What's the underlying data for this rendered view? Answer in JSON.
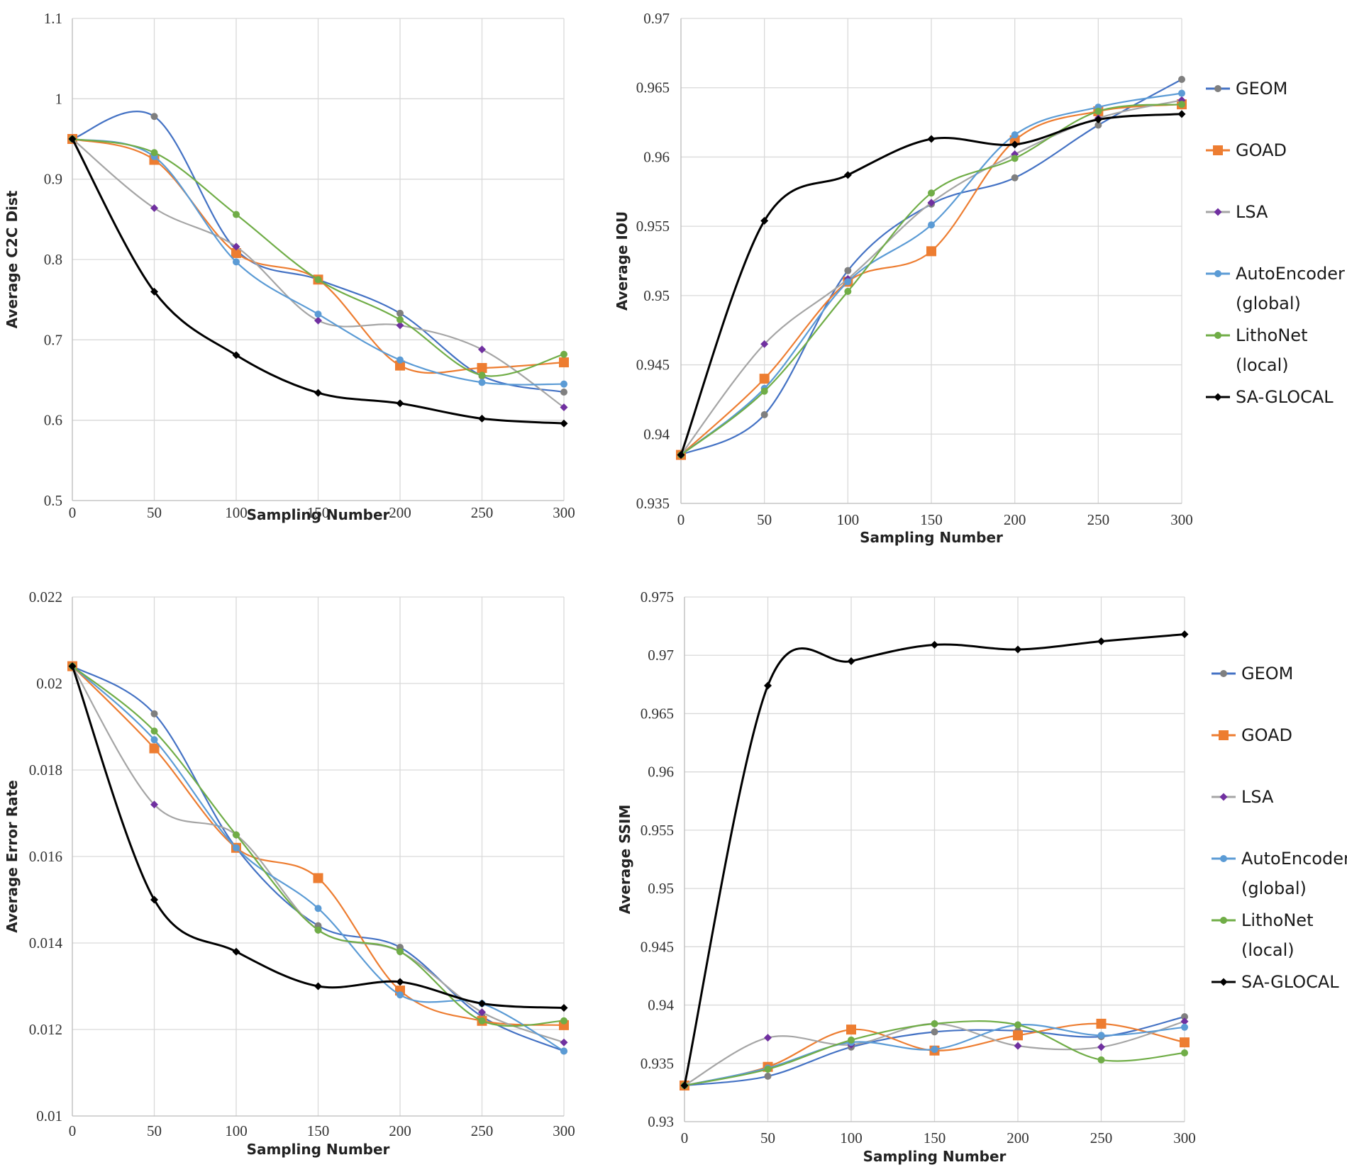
{
  "styles": {
    "GEOM": {
      "color": "#4472C4",
      "marker": "circle",
      "markerColor": "#7F7F7F"
    },
    "GOAD": {
      "color": "#ED7D31",
      "marker": "square",
      "markerColor": "#ED7D31"
    },
    "LSA": {
      "color": "#A5A5A5",
      "marker": "diamond",
      "markerColor": "#7030A0"
    },
    "AutoEncoder": {
      "color": "#5B9BD5",
      "marker": "circle",
      "markerColor": "#5B9BD5"
    },
    "LithoNet": {
      "color": "#70AD47",
      "marker": "circle",
      "markerColor": "#70AD47"
    },
    "SA-GLOCAL": {
      "color": "#000000",
      "marker": "diamond",
      "markerColor": "#000000"
    }
  },
  "chart_data": [
    {
      "type": "line",
      "xlabel": "Sampling Number",
      "ylabel": "Average C2C Dist",
      "x": [
        0,
        50,
        100,
        150,
        200,
        250,
        300
      ],
      "ylim": [
        0.5,
        1.1
      ],
      "yticks": [
        "0.5",
        "0.6",
        "0.7",
        "0.8",
        "0.9",
        "1",
        "1.1"
      ],
      "xticks": [
        "0",
        "50",
        "100",
        "150",
        "200",
        "250",
        "300"
      ],
      "grid": true,
      "legend": null,
      "series": [
        {
          "key": "GEOM",
          "values": [
            0.95,
            0.978,
            0.812,
            0.775,
            0.733,
            0.655,
            0.635
          ]
        },
        {
          "key": "GOAD",
          "values": [
            0.95,
            0.924,
            0.808,
            0.775,
            0.668,
            0.665,
            0.672
          ]
        },
        {
          "key": "LSA",
          "values": [
            0.95,
            0.864,
            0.816,
            0.724,
            0.718,
            0.688,
            0.616
          ]
        },
        {
          "key": "AutoEncoder",
          "values": [
            0.95,
            0.928,
            0.797,
            0.732,
            0.675,
            0.647,
            0.645
          ]
        },
        {
          "key": "LithoNet",
          "values": [
            0.95,
            0.933,
            0.856,
            0.775,
            0.725,
            0.656,
            0.682
          ]
        },
        {
          "key": "SA-GLOCAL",
          "values": [
            0.95,
            0.76,
            0.681,
            0.634,
            0.621,
            0.602,
            0.596
          ]
        }
      ]
    },
    {
      "type": "line",
      "xlabel": "Sampling Number",
      "ylabel": "Average IOU",
      "x": [
        0,
        50,
        100,
        150,
        200,
        250,
        300
      ],
      "ylim": [
        0.935,
        0.97
      ],
      "yticks": [
        "0.935",
        "0.94",
        "0.945",
        "0.95",
        "0.955",
        "0.96",
        "0.965",
        "0.97"
      ],
      "xticks": [
        "0",
        "50",
        "100",
        "150",
        "200",
        "250",
        "300"
      ],
      "grid": true,
      "legend": "right",
      "series": [
        {
          "key": "GEOM",
          "values": [
            0.9385,
            0.9414,
            0.9518,
            0.9566,
            0.9585,
            0.9623,
            0.9656
          ]
        },
        {
          "key": "GOAD",
          "values": [
            0.9385,
            0.944,
            0.951,
            0.9532,
            0.9612,
            0.9633,
            0.9638
          ]
        },
        {
          "key": "LSA",
          "values": [
            0.9385,
            0.9465,
            0.9512,
            0.9567,
            0.9602,
            0.9628,
            0.9641
          ]
        },
        {
          "key": "AutoEncoder",
          "values": [
            0.9385,
            0.9433,
            0.951,
            0.9551,
            0.9616,
            0.9636,
            0.9646
          ]
        },
        {
          "key": "LithoNet",
          "values": [
            0.9385,
            0.9431,
            0.9503,
            0.9574,
            0.9599,
            0.9633,
            0.9638
          ]
        },
        {
          "key": "SA-GLOCAL",
          "values": [
            0.9385,
            0.9554,
            0.9587,
            0.9613,
            0.9609,
            0.9627,
            0.9631
          ]
        }
      ],
      "legend_items": [
        "GEOM",
        "GOAD",
        "LSA",
        "AutoEncoder (global)",
        "LithoNet (local)",
        "SA-GLOCAL"
      ]
    },
    {
      "type": "line",
      "xlabel": "Sampling Number",
      "ylabel": "Average Error Rate",
      "x": [
        0,
        50,
        100,
        150,
        200,
        250,
        300
      ],
      "ylim": [
        0.01,
        0.022
      ],
      "yticks": [
        "0.01",
        "0.012",
        "0.014",
        "0.016",
        "0.018",
        "0.02",
        "0.022"
      ],
      "xticks": [
        "0",
        "50",
        "100",
        "150",
        "200",
        "250",
        "300"
      ],
      "grid": true,
      "legend": null,
      "series": [
        {
          "key": "GEOM",
          "values": [
            0.0204,
            0.0193,
            0.0162,
            0.0144,
            0.0139,
            0.0123,
            0.0115
          ]
        },
        {
          "key": "GOAD",
          "values": [
            0.0204,
            0.0185,
            0.0162,
            0.0155,
            0.0129,
            0.0122,
            0.0121
          ]
        },
        {
          "key": "LSA",
          "values": [
            0.0204,
            0.0172,
            0.0165,
            0.0143,
            0.0138,
            0.0124,
            0.0117
          ]
        },
        {
          "key": "AutoEncoder",
          "values": [
            0.0204,
            0.0187,
            0.0162,
            0.0148,
            0.0128,
            0.0126,
            0.0115
          ]
        },
        {
          "key": "LithoNet",
          "values": [
            0.0204,
            0.0189,
            0.0165,
            0.0143,
            0.0138,
            0.0122,
            0.0122
          ]
        },
        {
          "key": "SA-GLOCAL",
          "values": [
            0.0204,
            0.015,
            0.0138,
            0.013,
            0.0131,
            0.0126,
            0.0125
          ]
        }
      ]
    },
    {
      "type": "line",
      "xlabel": "Sampling Number",
      "ylabel": "Average SSIM",
      "x": [
        0,
        50,
        100,
        150,
        200,
        250,
        300
      ],
      "ylim": [
        0.93,
        0.975
      ],
      "yticks": [
        "0.93",
        "0.935",
        "0.94",
        "0.945",
        "0.95",
        "0.955",
        "0.96",
        "0.965",
        "0.97",
        "0.975"
      ],
      "xticks": [
        "0",
        "50",
        "100",
        "150",
        "200",
        "250",
        "300"
      ],
      "grid": true,
      "legend": "right",
      "series": [
        {
          "key": "GEOM",
          "values": [
            0.9331,
            0.9339,
            0.9364,
            0.9377,
            0.9378,
            0.9373,
            0.939
          ]
        },
        {
          "key": "GOAD",
          "values": [
            0.9331,
            0.9347,
            0.9379,
            0.9361,
            0.9374,
            0.9384,
            0.9368
          ]
        },
        {
          "key": "LSA",
          "values": [
            0.9331,
            0.9372,
            0.9366,
            0.9384,
            0.9365,
            0.9364,
            0.9386
          ]
        },
        {
          "key": "AutoEncoder",
          "values": [
            0.9331,
            0.9346,
            0.9368,
            0.9362,
            0.9383,
            0.9374,
            0.9381
          ]
        },
        {
          "key": "LithoNet",
          "values": [
            0.9331,
            0.9345,
            0.937,
            0.9384,
            0.9383,
            0.9353,
            0.9359
          ]
        },
        {
          "key": "SA-GLOCAL",
          "values": [
            0.9331,
            0.9674,
            0.9695,
            0.9709,
            0.9705,
            0.9712,
            0.9718
          ]
        }
      ],
      "legend_items": [
        "GEOM",
        "GOAD",
        "LSA",
        "AutoEncoder (global)",
        "LithoNet (local)",
        "SA-GLOCAL"
      ]
    }
  ]
}
